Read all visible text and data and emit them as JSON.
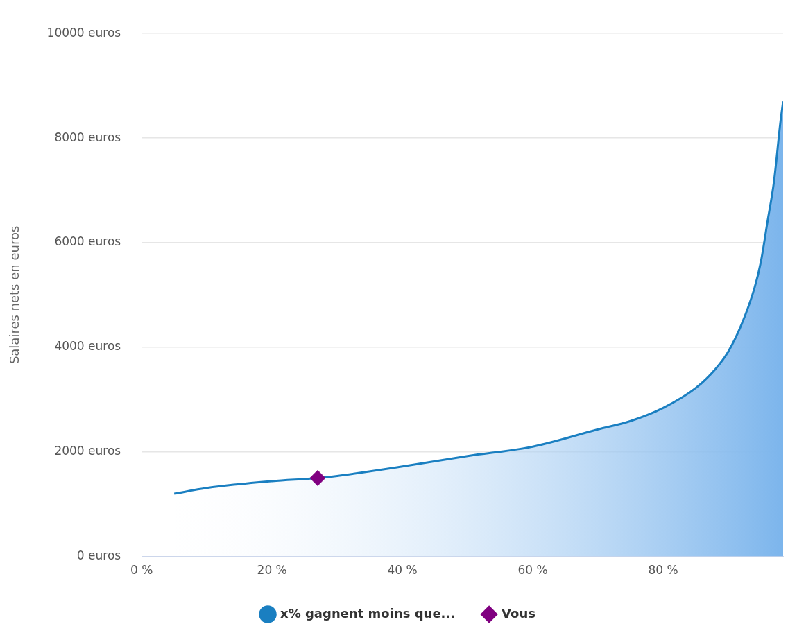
{
  "chart_data": {
    "type": "area",
    "ylabel": "Salaires nets en euros",
    "xlim": [
      0,
      98.4
    ],
    "ylim": [
      0,
      10000
    ],
    "xticks": [
      {
        "value": 0,
        "label": "0 %"
      },
      {
        "value": 20,
        "label": "20 %"
      },
      {
        "value": 40,
        "label": "40 %"
      },
      {
        "value": 60,
        "label": "60 %"
      },
      {
        "value": 80,
        "label": "80 %"
      }
    ],
    "yticks": [
      {
        "value": 0,
        "label": "0 euros"
      },
      {
        "value": 2000,
        "label": "2000 euros"
      },
      {
        "value": 4000,
        "label": "4000 euros"
      },
      {
        "value": 6000,
        "label": "6000 euros"
      },
      {
        "value": 8000,
        "label": "8000 euros"
      },
      {
        "value": 10000,
        "label": "10000 euros"
      }
    ],
    "grid": "y",
    "legend": "bottom",
    "series": [
      {
        "name": "x% gagnent moins que...",
        "type": "area",
        "color": "#1a7fc1",
        "marker": "none",
        "x": [
          5,
          10,
          20,
          27,
          30,
          40,
          50,
          60,
          70,
          75,
          80,
          85,
          88,
          90,
          92,
          94,
          95,
          96,
          97,
          98,
          98.4
        ],
        "values": [
          1200,
          1310,
          1440,
          1500,
          1540,
          1720,
          1920,
          2100,
          2430,
          2590,
          2840,
          3220,
          3580,
          3920,
          4430,
          5130,
          5640,
          6400,
          7170,
          8320,
          8700
        ]
      },
      {
        "name": "Vous",
        "type": "scatter",
        "color": "#800080",
        "marker": "diamond",
        "x": [
          27
        ],
        "values": [
          1500
        ]
      }
    ]
  }
}
